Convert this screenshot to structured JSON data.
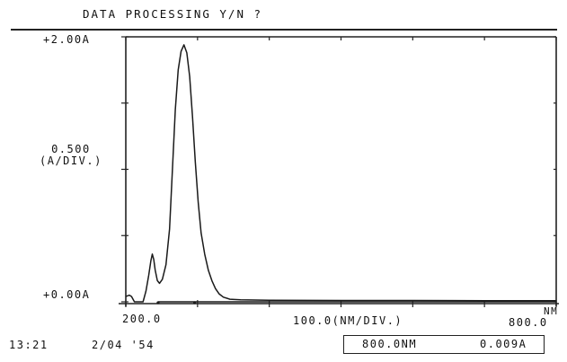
{
  "screen": {
    "prompt": "DATA PROCESSING Y/N ?",
    "time": "13:21",
    "date": "2/04 '54",
    "readout": {
      "wavelength": "800.0NM",
      "absorbance": "0.009A"
    }
  },
  "chart_data": {
    "type": "line",
    "title": "",
    "y_top_label": "+2.00A",
    "y_bottom_label": "+0.00A",
    "y_scale_label": [
      "0.500",
      "(A/DIV.)"
    ],
    "x_start_label": "200.0",
    "x_scale_label": "100.0(NM/DIV.)",
    "x_end_label": "800.0",
    "x_unit_label": "NM",
    "xlim": [
      200,
      800
    ],
    "ylim": [
      0,
      2.0
    ],
    "x_ticks": [
      200,
      300,
      400,
      500,
      600,
      700,
      800
    ],
    "y_ticks": [
      0,
      0.5,
      1.0,
      1.5,
      2.0
    ],
    "series": [
      {
        "points": [
          [
            200,
            0.04
          ],
          [
            205,
            0.05
          ],
          [
            208,
            0.04
          ],
          [
            212,
            0.0
          ],
          [
            218,
            0.0
          ],
          [
            224,
            0.0
          ],
          [
            228,
            0.08
          ],
          [
            232,
            0.2
          ],
          [
            235,
            0.31
          ],
          [
            237,
            0.36
          ],
          [
            239,
            0.32
          ],
          [
            241,
            0.24
          ],
          [
            244,
            0.16
          ],
          [
            247,
            0.14
          ],
          [
            251,
            0.17
          ],
          [
            256,
            0.28
          ],
          [
            261,
            0.55
          ],
          [
            265,
            1.0
          ],
          [
            269,
            1.45
          ],
          [
            273,
            1.75
          ],
          [
            277,
            1.89
          ],
          [
            281,
            1.94
          ],
          [
            285,
            1.88
          ],
          [
            289,
            1.7
          ],
          [
            293,
            1.4
          ],
          [
            297,
            1.05
          ],
          [
            301,
            0.75
          ],
          [
            305,
            0.52
          ],
          [
            310,
            0.36
          ],
          [
            315,
            0.24
          ],
          [
            320,
            0.16
          ],
          [
            325,
            0.1
          ],
          [
            330,
            0.06
          ],
          [
            336,
            0.035
          ],
          [
            345,
            0.02
          ],
          [
            360,
            0.015
          ],
          [
            400,
            0.012
          ],
          [
            500,
            0.01
          ],
          [
            600,
            0.01
          ],
          [
            700,
            0.009
          ],
          [
            800,
            0.009
          ]
        ]
      },
      {
        "points": [
          [
            245,
            0.0
          ],
          [
            800,
            0.0
          ]
        ]
      }
    ]
  }
}
